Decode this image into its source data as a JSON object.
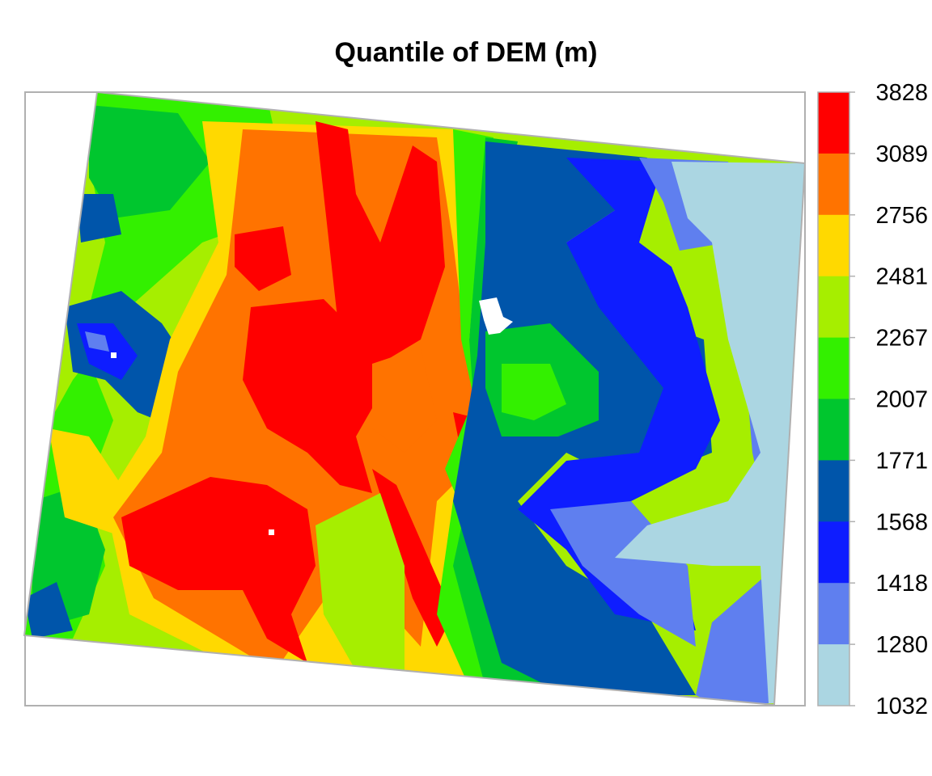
{
  "title": "Quantile of DEM (m)",
  "legend": {
    "unit": "m",
    "breaks": [
      "3828",
      "3089",
      "2756",
      "2481",
      "2267",
      "2007",
      "1771",
      "1568",
      "1418",
      "1280",
      "1032"
    ],
    "colors": [
      "#ff0000",
      "#ff7300",
      "#ffd900",
      "#a6ee00",
      "#33f000",
      "#00c62e",
      "#0055aa",
      "#0e1dff",
      "#5f7fef",
      "#abd6e2"
    ]
  },
  "map_colors": {
    "red": "#ff0000",
    "orange": "#ff7300",
    "yellow": "#ffd900",
    "lime": "#a6ee00",
    "green": "#33f000",
    "dark_green": "#00c62e",
    "navy": "#0055aa",
    "blue": "#0e1dff",
    "periwinkle": "#5f7fef",
    "light_blue": "#abd6e2",
    "frame": "#b0b0b0"
  }
}
